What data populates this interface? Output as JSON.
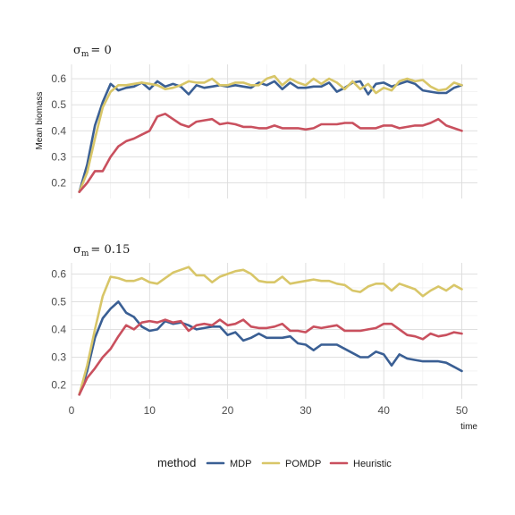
{
  "legend": {
    "title": "method",
    "entries": [
      {
        "label": "MDP",
        "color": "#3a5f94"
      },
      {
        "label": "POMDP",
        "color": "#d8c668"
      },
      {
        "label": "Heuristic",
        "color": "#c9505e"
      }
    ]
  },
  "chart_data": [
    {
      "type": "line",
      "title_symbol": "σ",
      "title_subscript": "m",
      "title_value": "= 0",
      "ylabel": "Mean biomass",
      "xlabel": "",
      "xlim": [
        0,
        52
      ],
      "ylim": [
        0.14,
        0.655
      ],
      "xticks": [
        0,
        10,
        20,
        30,
        40,
        50
      ],
      "yticks": [
        0.2,
        0.3,
        0.4,
        0.5,
        0.6
      ],
      "show_x_tick_labels": false,
      "x": [
        1,
        2,
        3,
        4,
        5,
        6,
        7,
        8,
        9,
        10,
        11,
        12,
        13,
        14,
        15,
        16,
        17,
        18,
        19,
        20,
        21,
        22,
        23,
        24,
        25,
        26,
        27,
        28,
        29,
        30,
        31,
        32,
        33,
        34,
        35,
        36,
        37,
        38,
        39,
        40,
        41,
        42,
        43,
        44,
        45,
        46,
        47,
        48,
        49,
        50
      ],
      "series": [
        {
          "name": "MDP",
          "values": [
            0.165,
            0.27,
            0.42,
            0.51,
            0.58,
            0.555,
            0.565,
            0.57,
            0.585,
            0.56,
            0.59,
            0.57,
            0.58,
            0.57,
            0.54,
            0.575,
            0.565,
            0.57,
            0.575,
            0.57,
            0.575,
            0.57,
            0.565,
            0.585,
            0.575,
            0.59,
            0.56,
            0.585,
            0.565,
            0.565,
            0.57,
            0.57,
            0.585,
            0.55,
            0.565,
            0.585,
            0.59,
            0.54,
            0.58,
            0.585,
            0.57,
            0.58,
            0.59,
            0.58,
            0.555,
            0.55,
            0.545,
            0.545,
            0.565,
            0.575
          ]
        },
        {
          "name": "POMDP",
          "values": [
            0.165,
            0.24,
            0.37,
            0.49,
            0.55,
            0.575,
            0.575,
            0.58,
            0.585,
            0.58,
            0.575,
            0.56,
            0.565,
            0.575,
            0.59,
            0.585,
            0.585,
            0.6,
            0.575,
            0.575,
            0.585,
            0.585,
            0.575,
            0.575,
            0.6,
            0.61,
            0.575,
            0.6,
            0.585,
            0.575,
            0.6,
            0.58,
            0.6,
            0.585,
            0.56,
            0.59,
            0.56,
            0.58,
            0.545,
            0.565,
            0.555,
            0.59,
            0.6,
            0.59,
            0.595,
            0.57,
            0.555,
            0.56,
            0.585,
            0.575
          ]
        },
        {
          "name": "Heuristic",
          "values": [
            0.165,
            0.2,
            0.245,
            0.245,
            0.3,
            0.34,
            0.36,
            0.37,
            0.385,
            0.4,
            0.455,
            0.465,
            0.445,
            0.425,
            0.415,
            0.435,
            0.44,
            0.445,
            0.425,
            0.43,
            0.425,
            0.415,
            0.415,
            0.41,
            0.41,
            0.42,
            0.41,
            0.41,
            0.41,
            0.405,
            0.41,
            0.425,
            0.425,
            0.425,
            0.43,
            0.43,
            0.41,
            0.41,
            0.41,
            0.42,
            0.42,
            0.41,
            0.415,
            0.42,
            0.42,
            0.43,
            0.445,
            0.42,
            0.41,
            0.4
          ]
        }
      ]
    },
    {
      "type": "line",
      "title_symbol": "σ",
      "title_subscript": "m",
      "title_value": "= 0.15",
      "ylabel": "",
      "xlabel": "time",
      "xlim": [
        0,
        52
      ],
      "ylim": [
        0.15,
        0.64
      ],
      "xticks": [
        0,
        10,
        20,
        30,
        40,
        50
      ],
      "yticks": [
        0.2,
        0.3,
        0.4,
        0.5,
        0.6
      ],
      "show_x_tick_labels": true,
      "x": [
        1,
        2,
        3,
        4,
        5,
        6,
        7,
        8,
        9,
        10,
        11,
        12,
        13,
        14,
        15,
        16,
        17,
        18,
        19,
        20,
        21,
        22,
        23,
        24,
        25,
        26,
        27,
        28,
        29,
        30,
        31,
        32,
        33,
        34,
        35,
        36,
        37,
        38,
        39,
        40,
        41,
        42,
        43,
        44,
        45,
        46,
        47,
        48,
        49,
        50
      ],
      "series": [
        {
          "name": "MDP",
          "values": [
            0.165,
            0.25,
            0.37,
            0.44,
            0.475,
            0.5,
            0.46,
            0.445,
            0.41,
            0.395,
            0.4,
            0.43,
            0.42,
            0.425,
            0.415,
            0.4,
            0.405,
            0.41,
            0.41,
            0.38,
            0.39,
            0.36,
            0.37,
            0.385,
            0.37,
            0.37,
            0.37,
            0.375,
            0.35,
            0.345,
            0.325,
            0.345,
            0.345,
            0.345,
            0.33,
            0.315,
            0.3,
            0.3,
            0.32,
            0.31,
            0.27,
            0.31,
            0.295,
            0.29,
            0.285,
            0.285,
            0.285,
            0.28,
            0.265,
            0.25
          ]
        },
        {
          "name": "POMDP",
          "values": [
            0.165,
            0.27,
            0.4,
            0.52,
            0.59,
            0.585,
            0.575,
            0.575,
            0.585,
            0.57,
            0.565,
            0.585,
            0.605,
            0.615,
            0.625,
            0.595,
            0.595,
            0.57,
            0.59,
            0.6,
            0.61,
            0.615,
            0.6,
            0.575,
            0.57,
            0.57,
            0.59,
            0.565,
            0.57,
            0.575,
            0.58,
            0.575,
            0.575,
            0.565,
            0.56,
            0.54,
            0.535,
            0.555,
            0.565,
            0.565,
            0.54,
            0.565,
            0.555,
            0.545,
            0.52,
            0.54,
            0.555,
            0.54,
            0.56,
            0.545
          ]
        },
        {
          "name": "Heuristic",
          "values": [
            0.165,
            0.225,
            0.26,
            0.3,
            0.33,
            0.375,
            0.415,
            0.4,
            0.425,
            0.43,
            0.425,
            0.435,
            0.425,
            0.43,
            0.395,
            0.415,
            0.42,
            0.415,
            0.435,
            0.415,
            0.42,
            0.435,
            0.41,
            0.405,
            0.405,
            0.41,
            0.42,
            0.395,
            0.395,
            0.39,
            0.41,
            0.405,
            0.41,
            0.415,
            0.395,
            0.395,
            0.395,
            0.4,
            0.405,
            0.42,
            0.42,
            0.4,
            0.38,
            0.375,
            0.365,
            0.385,
            0.375,
            0.38,
            0.39,
            0.385
          ]
        }
      ]
    }
  ]
}
